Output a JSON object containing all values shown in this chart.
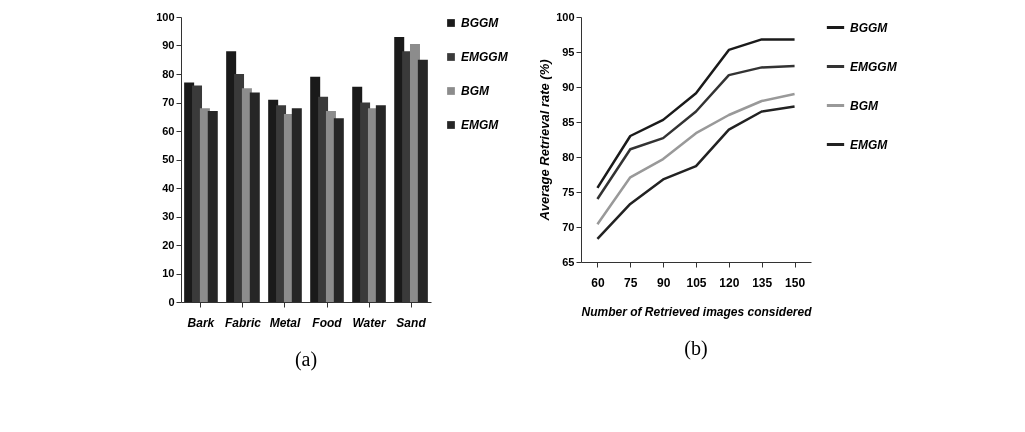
{
  "chart_data": [
    {
      "type": "bar",
      "categories": [
        "Bark",
        "Fabric",
        "Metal",
        "Food",
        "Water",
        "Sand"
      ],
      "ylim": [
        0,
        100
      ],
      "yticks": [
        0,
        10,
        20,
        30,
        40,
        50,
        60,
        70,
        80,
        90,
        100
      ],
      "legend": "right",
      "annotations": [
        "(a)"
      ],
      "series": [
        {
          "name": "BGGM",
          "color": "#1a1a1a",
          "values": [
            77,
            88,
            71,
            79,
            75.5,
            93
          ]
        },
        {
          "name": "EMGGM",
          "color": "#3a3a3a",
          "values": [
            76,
            80,
            69,
            72,
            70,
            88
          ]
        },
        {
          "name": "BGM",
          "color": "#8c8c8c",
          "values": [
            68,
            75,
            66,
            67,
            68,
            90.5
          ]
        },
        {
          "name": "EMGM",
          "color": "#262626",
          "values": [
            67,
            73.5,
            68,
            64.5,
            69,
            85
          ]
        }
      ]
    },
    {
      "type": "line",
      "categories": [
        "60",
        "75",
        "90",
        "105",
        "120",
        "135",
        "150"
      ],
      "xlabel": "Number of Retrieved images considered",
      "ylabel": "Average Retrieval rate (%)",
      "ylim": [
        65,
        100
      ],
      "yticks": [
        65,
        70,
        75,
        80,
        85,
        90,
        95,
        100
      ],
      "legend": "right",
      "marker": "none",
      "annotations": [
        "(b)"
      ],
      "series": [
        {
          "name": "BGGM",
          "color": "#1a1a1a",
          "values": [
            75.6,
            83,
            85.3,
            89.1,
            95.3,
            96.8,
            96.8
          ]
        },
        {
          "name": "EMGGM",
          "color": "#333333",
          "values": [
            74,
            81.1,
            82.7,
            86.5,
            91.7,
            92.8,
            93
          ]
        },
        {
          "name": "BGM",
          "color": "#999999",
          "values": [
            70.4,
            77.1,
            79.7,
            83.4,
            86,
            88,
            89
          ]
        },
        {
          "name": "EMGM",
          "color": "#222222",
          "values": [
            68.3,
            73.3,
            76.8,
            78.7,
            83.9,
            86.5,
            87.2
          ]
        }
      ]
    }
  ]
}
